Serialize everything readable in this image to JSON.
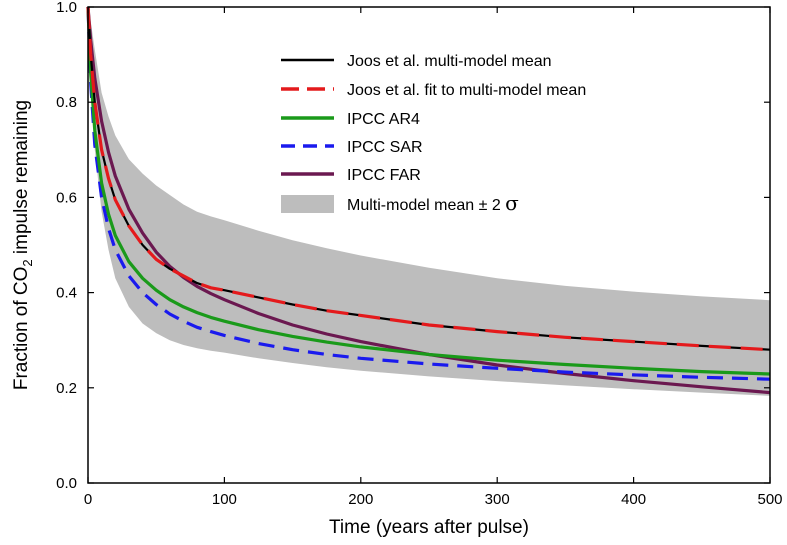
{
  "chart_data": {
    "type": "line",
    "xlabel": "Time (years after pulse)",
    "ylabel": {
      "prefix": "Fraction of CO",
      "subscript": "2",
      "suffix": " impulse remaining"
    },
    "xlim": [
      0,
      500
    ],
    "ylim": [
      0,
      1.0
    ],
    "x_ticks": [
      0,
      100,
      200,
      300,
      400,
      500
    ],
    "x_tick_labels": [
      "0",
      "100",
      "200",
      "300",
      "400",
      "500"
    ],
    "y_ticks": [
      0,
      0.2,
      0.4,
      0.6,
      0.8,
      1.0
    ],
    "y_tick_labels": [
      "0.0",
      "0.2",
      "0.4",
      "0.6",
      "0.8",
      "1.0"
    ],
    "grid": false,
    "legend_position": "top-right",
    "x": [
      0,
      2,
      5,
      10,
      15,
      20,
      30,
      40,
      50,
      60,
      70,
      80,
      90,
      100,
      125,
      150,
      175,
      200,
      250,
      300,
      350,
      400,
      450,
      500
    ],
    "series": [
      {
        "name": "Joos et al. multi-model mean",
        "color": "#000000",
        "style": "solid",
        "values": [
          1.0,
          0.9,
          0.8,
          0.7,
          0.64,
          0.595,
          0.54,
          0.5,
          0.47,
          0.45,
          0.435,
          0.42,
          0.41,
          0.405,
          0.39,
          0.375,
          0.362,
          0.352,
          0.332,
          0.318,
          0.306,
          0.297,
          0.288,
          0.28
        ]
      },
      {
        "name": "Joos et al. fit to multi-model mean",
        "color": "#e41a1c",
        "style": "dashed",
        "values": [
          1.0,
          0.9,
          0.8,
          0.7,
          0.64,
          0.595,
          0.54,
          0.5,
          0.47,
          0.45,
          0.435,
          0.42,
          0.41,
          0.405,
          0.39,
          0.375,
          0.362,
          0.352,
          0.332,
          0.318,
          0.306,
          0.297,
          0.288,
          0.28
        ]
      },
      {
        "name": "IPCC AR4",
        "color": "#1a9a1a",
        "style": "solid",
        "values": [
          1.0,
          0.86,
          0.74,
          0.63,
          0.565,
          0.52,
          0.465,
          0.43,
          0.405,
          0.385,
          0.37,
          0.358,
          0.348,
          0.34,
          0.322,
          0.308,
          0.296,
          0.286,
          0.27,
          0.258,
          0.249,
          0.241,
          0.234,
          0.229
        ]
      },
      {
        "name": "IPCC SAR",
        "color": "#1a1aee",
        "style": "dashed",
        "values": [
          1.0,
          0.84,
          0.71,
          0.6,
          0.535,
          0.49,
          0.435,
          0.4,
          0.375,
          0.355,
          0.34,
          0.327,
          0.318,
          0.31,
          0.293,
          0.28,
          0.27,
          0.262,
          0.25,
          0.241,
          0.233,
          0.227,
          0.222,
          0.218
        ]
      },
      {
        "name": "IPCC FAR",
        "color": "#6b1850",
        "style": "solid",
        "values": [
          1.0,
          0.93,
          0.85,
          0.76,
          0.695,
          0.645,
          0.575,
          0.525,
          0.485,
          0.455,
          0.432,
          0.413,
          0.398,
          0.385,
          0.356,
          0.332,
          0.313,
          0.297,
          0.27,
          0.248,
          0.23,
          0.215,
          0.202,
          0.19
        ]
      }
    ],
    "band": {
      "name": "Multi-model mean ± 2",
      "symbol": "σ",
      "color": "#bdbdbd",
      "lower": [
        1.0,
        0.84,
        0.7,
        0.57,
        0.49,
        0.43,
        0.37,
        0.335,
        0.315,
        0.3,
        0.29,
        0.283,
        0.278,
        0.274,
        0.262,
        0.252,
        0.243,
        0.236,
        0.224,
        0.214,
        0.205,
        0.197,
        0.19,
        0.183
      ],
      "upper": [
        1.0,
        0.97,
        0.91,
        0.82,
        0.77,
        0.73,
        0.68,
        0.65,
        0.625,
        0.605,
        0.585,
        0.57,
        0.56,
        0.552,
        0.53,
        0.51,
        0.493,
        0.478,
        0.452,
        0.43,
        0.414,
        0.402,
        0.392,
        0.384
      ]
    }
  }
}
